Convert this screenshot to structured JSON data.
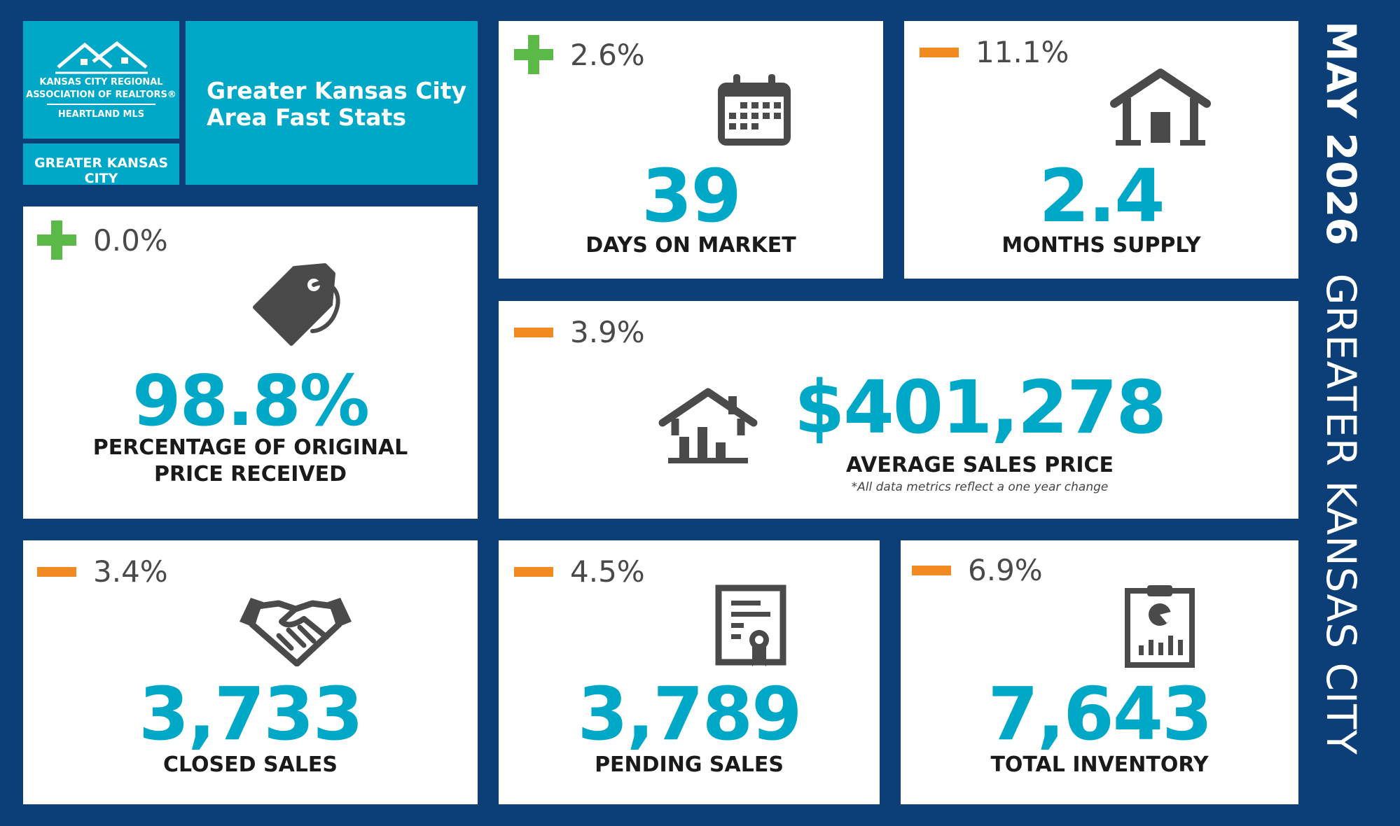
{
  "brand": {
    "logo_line1": "KANSAS CITY REGIONAL",
    "logo_line2": "ASSOCIATION OF REALTORS®",
    "logo_line3": "HEARTLAND MLS",
    "region": "GREATER KANSAS CITY",
    "title_line1": "Greater Kansas City",
    "title_line2": "Area Fast Stats"
  },
  "side": {
    "date": "MAY 2026",
    "region": "GREATER KANSAS CITY"
  },
  "colors": {
    "navy": "#0c3e78",
    "teal": "#00a8c8",
    "plus": "#5ab947",
    "minus": "#f18b21",
    "icon": "#4a4a4a"
  },
  "stats": {
    "days_on_market": {
      "change": "2.6%",
      "direction": "up",
      "value": "39",
      "label": "DAYS ON MARKET",
      "icon": "calendar-icon"
    },
    "months_supply": {
      "change": "11.1%",
      "direction": "down",
      "value": "2.4",
      "label": "MONTHS SUPPLY",
      "icon": "house-icon"
    },
    "pct_original_price": {
      "change": "0.0%",
      "direction": "up",
      "value": "98.8%",
      "label_line1": "PERCENTAGE OF ORIGINAL",
      "label_line2": "PRICE RECEIVED",
      "icon": "price-tag-icon"
    },
    "avg_sales_price": {
      "change": "3.9%",
      "direction": "down",
      "value": "$401,278",
      "label": "AVERAGE SALES PRICE",
      "note": "*All data metrics reflect a one year change",
      "icon": "house-chart-icon"
    },
    "closed_sales": {
      "change": "3.4%",
      "direction": "down",
      "value": "3,733",
      "label": "CLOSED SALES",
      "icon": "handshake-icon"
    },
    "pending_sales": {
      "change": "4.5%",
      "direction": "down",
      "value": "3,789",
      "label": "PENDING SALES",
      "icon": "certificate-icon"
    },
    "total_inventory": {
      "change": "6.9%",
      "direction": "down",
      "value": "7,643",
      "label": "TOTAL INVENTORY",
      "icon": "clipboard-chart-icon"
    }
  }
}
